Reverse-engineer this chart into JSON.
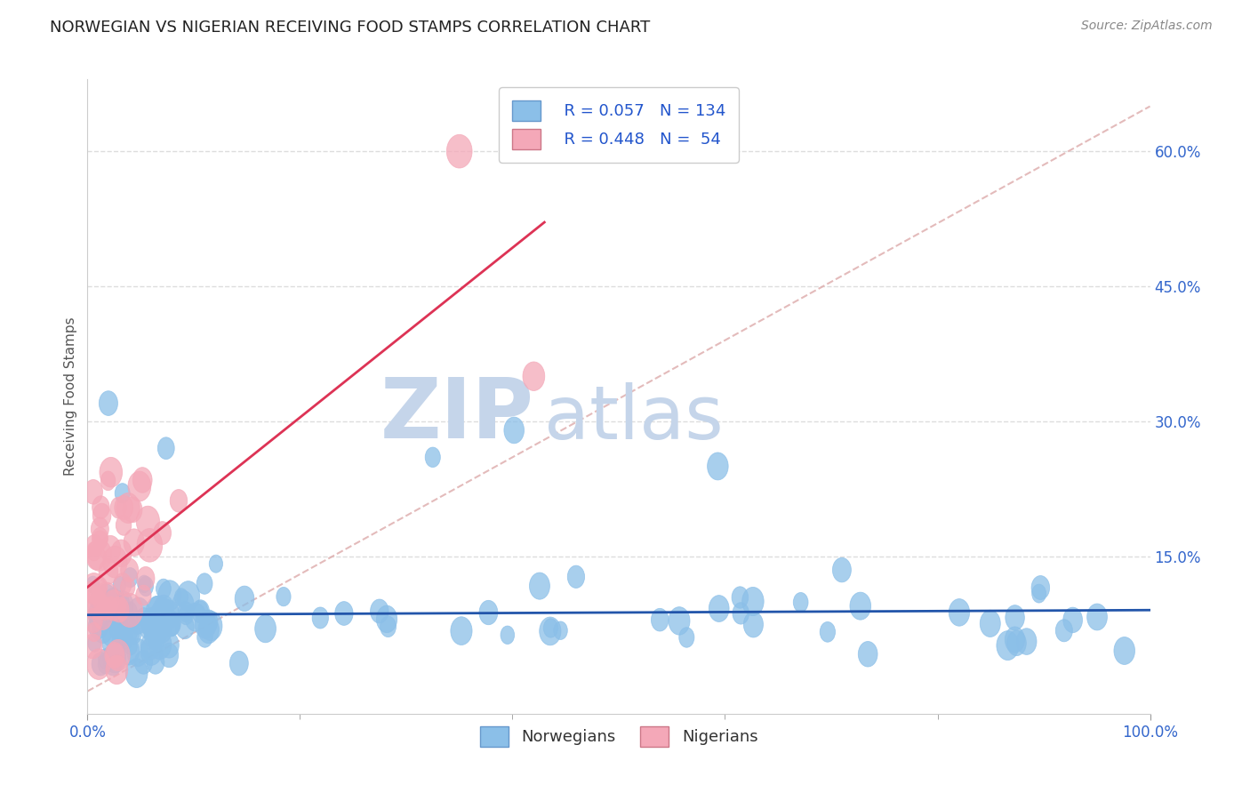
{
  "title": "NORWEGIAN VS NIGERIAN RECEIVING FOOD STAMPS CORRELATION CHART",
  "source": "Source: ZipAtlas.com",
  "ylabel": "Receiving Food Stamps",
  "xlim": [
    0.0,
    1.0
  ],
  "ylim": [
    -0.025,
    0.68
  ],
  "ytick_vals": [
    0.15,
    0.3,
    0.45,
    0.6
  ],
  "ytick_labels": [
    "15.0%",
    "30.0%",
    "45.0%",
    "60.0%"
  ],
  "xtick_labels": [
    "0.0%",
    "100.0%"
  ],
  "legend_R_blue": "R = 0.057",
  "legend_N_blue": "N = 134",
  "legend_R_pink": "R = 0.448",
  "legend_N_pink": "N =  54",
  "blue_color": "#8bbfe8",
  "pink_color": "#f4a8b8",
  "blue_line_color": "#2255aa",
  "pink_line_color": "#dd3355",
  "diag_line_color": "#ddaaaa",
  "blue_label": "Norwegians",
  "pink_label": "Nigerians",
  "title_fontsize": 13,
  "axis_label_fontsize": 11,
  "tick_fontsize": 12,
  "legend_fontsize": 13,
  "watermark_ZIP_color": "#c5d5ea",
  "watermark_atlas_color": "#c5d5ea",
  "background_color": "#ffffff",
  "grid_color": "#dddddd"
}
